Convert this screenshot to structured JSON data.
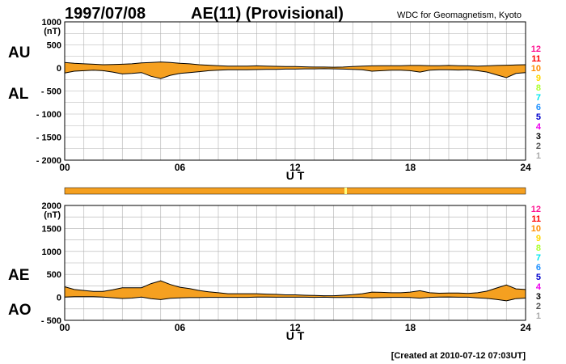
{
  "header": {
    "date": "1997/07/08",
    "title": "AE(11) (Provisional)",
    "source": "WDC for Geomagnetism, Kyoto"
  },
  "footer": {
    "created": "[Created at 2010-07-12 07:03UT]"
  },
  "colors": {
    "fill": "#f5a020",
    "line": "#000000",
    "grid": "#b0b0b0",
    "bar": "#f5a020",
    "bar_gap": "#ffff80"
  },
  "legend_labels": [
    {
      "label": "12",
      "color": "#ff1493"
    },
    {
      "label": "11",
      "color": "#ff0000"
    },
    {
      "label": "10",
      "color": "#ff8c00"
    },
    {
      "label": "9",
      "color": "#ffd700"
    },
    {
      "label": "8",
      "color": "#adff2f"
    },
    {
      "label": "7",
      "color": "#00e5ee"
    },
    {
      "label": "6",
      "color": "#1e90ff"
    },
    {
      "label": "5",
      "color": "#0000cd"
    },
    {
      "label": "4",
      "color": "#ee00ee"
    },
    {
      "label": "3",
      "color": "#000000"
    },
    {
      "label": "2",
      "color": "#555555"
    },
    {
      "label": "1",
      "color": "#aaaaaa"
    }
  ],
  "chart_data": [
    {
      "type": "area",
      "panel": "AU/AL",
      "series_labels": [
        "AU",
        "AL"
      ],
      "ylabel": "(nT)",
      "xlabel": "U T",
      "ylim": [
        -2000,
        1000
      ],
      "yticks": [
        1000,
        500,
        0,
        -500,
        -1000,
        -1500,
        -2000
      ],
      "ytick_labels": [
        "1000",
        "500",
        "0",
        "- 500",
        "- 1000",
        "- 1500",
        "- 2000"
      ],
      "xlim": [
        0,
        24
      ],
      "xticks": [
        0,
        6,
        12,
        18,
        24
      ],
      "xtick_labels": [
        "00",
        "06",
        "12",
        "18",
        "24"
      ],
      "grid": true,
      "x": [
        0,
        0.5,
        1,
        1.5,
        2,
        2.5,
        3,
        3.5,
        4,
        4.5,
        5,
        5.5,
        6,
        6.5,
        7,
        7.5,
        8,
        8.5,
        9,
        9.5,
        10,
        10.5,
        11,
        11.5,
        12,
        12.5,
        13,
        13.5,
        14,
        14.5,
        15,
        15.5,
        16,
        16.5,
        17,
        17.5,
        18,
        18.5,
        19,
        19.5,
        20,
        20.5,
        21,
        21.5,
        22,
        22.5,
        23,
        23.5,
        24
      ],
      "series": [
        {
          "name": "AU",
          "values": [
            120,
            100,
            90,
            80,
            70,
            75,
            80,
            90,
            110,
            120,
            130,
            120,
            100,
            90,
            70,
            60,
            50,
            40,
            40,
            40,
            45,
            40,
            35,
            30,
            30,
            25,
            20,
            20,
            15,
            20,
            30,
            40,
            45,
            50,
            50,
            50,
            55,
            55,
            50,
            50,
            55,
            50,
            45,
            40,
            45,
            55,
            60,
            65,
            70
          ]
        },
        {
          "name": "AL",
          "values": [
            -110,
            -70,
            -60,
            -50,
            -60,
            -90,
            -130,
            -120,
            -100,
            -180,
            -230,
            -160,
            -120,
            -100,
            -80,
            -60,
            -50,
            -40,
            -40,
            -40,
            -35,
            -30,
            -30,
            -25,
            -25,
            -20,
            -20,
            -15,
            -20,
            -25,
            -30,
            -40,
            -70,
            -60,
            -50,
            -50,
            -60,
            -90,
            -50,
            -40,
            -40,
            -45,
            -40,
            -60,
            -90,
            -150,
            -210,
            -120,
            -100
          ]
        }
      ]
    },
    {
      "type": "area",
      "panel": "AE/AO",
      "series_labels": [
        "AE",
        "AO"
      ],
      "ylabel": "(nT)",
      "xlabel": "U T",
      "ylim": [
        -500,
        2000
      ],
      "yticks": [
        2000,
        1500,
        1000,
        500,
        0,
        -500
      ],
      "ytick_labels": [
        "2000",
        "1500",
        "1000",
        "500",
        "0",
        "- 500"
      ],
      "xlim": [
        0,
        24
      ],
      "xticks": [
        0,
        6,
        12,
        18,
        24
      ],
      "xtick_labels": [
        "00",
        "06",
        "12",
        "18",
        "24"
      ],
      "grid": true,
      "x": [
        0,
        0.5,
        1,
        1.5,
        2,
        2.5,
        3,
        3.5,
        4,
        4.5,
        5,
        5.5,
        6,
        6.5,
        7,
        7.5,
        8,
        8.5,
        9,
        9.5,
        10,
        10.5,
        11,
        11.5,
        12,
        12.5,
        13,
        13.5,
        14,
        14.5,
        15,
        15.5,
        16,
        16.5,
        17,
        17.5,
        18,
        18.5,
        19,
        19.5,
        20,
        20.5,
        21,
        21.5,
        22,
        22.5,
        23,
        23.5,
        24
      ],
      "series": [
        {
          "name": "AE",
          "values": [
            230,
            170,
            150,
            130,
            130,
            165,
            210,
            210,
            210,
            300,
            360,
            280,
            220,
            190,
            150,
            120,
            100,
            80,
            80,
            80,
            80,
            70,
            65,
            55,
            55,
            45,
            40,
            35,
            35,
            45,
            60,
            80,
            115,
            110,
            100,
            100,
            115,
            145,
            100,
            90,
            95,
            95,
            85,
            100,
            135,
            205,
            270,
            185,
            170
          ]
        },
        {
          "name": "AO",
          "values": [
            5,
            15,
            15,
            15,
            5,
            -8,
            -25,
            -15,
            5,
            -30,
            -50,
            -20,
            -10,
            -5,
            -5,
            0,
            0,
            0,
            0,
            0,
            5,
            5,
            3,
            3,
            3,
            3,
            0,
            3,
            -3,
            -3,
            0,
            0,
            -13,
            -5,
            0,
            0,
            -3,
            -18,
            0,
            5,
            8,
            3,
            3,
            -10,
            -23,
            -48,
            -75,
            -28,
            -15
          ]
        }
      ]
    }
  ]
}
